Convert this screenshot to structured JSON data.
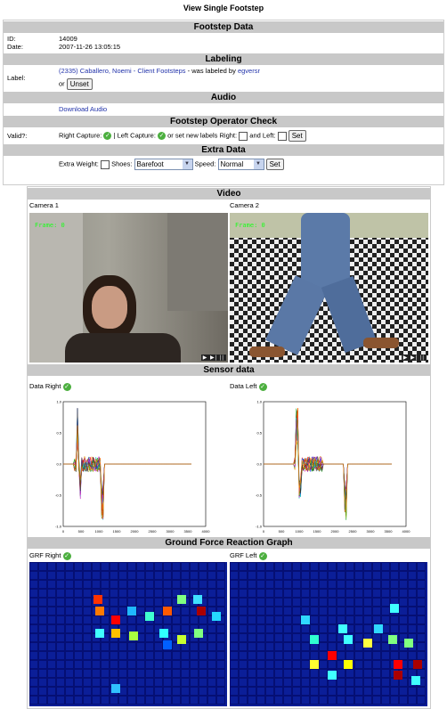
{
  "page_title": "View Single Footstep",
  "footstep_data": {
    "heading": "Footstep Data",
    "id_label": "ID:",
    "id_value": "14009",
    "date_label": "Date:",
    "date_value": "2007-11-26 13:05:15"
  },
  "labeling": {
    "heading": "Labeling",
    "label": "Label:",
    "link_text": "(2335) Caballero, Noemi - Client Footsteps",
    "text_mid": "- was labeled by",
    "labeled_by": "egversr",
    "or_text": "or",
    "unset_button": "Unset"
  },
  "audio": {
    "heading": "Audio",
    "download_link": "Download Audio"
  },
  "operator_check": {
    "heading": "Footstep Operator Check",
    "valid_label": "Valid?:",
    "right_capture": "Right Capture:",
    "left_capture": "| Left Capture:",
    "set_text": "or set new labels Right:",
    "and_left": "and Left:",
    "set_button": "Set"
  },
  "extra_data": {
    "heading": "Extra Data",
    "extra_weight": "Extra Weight:",
    "shoes_label": "Shoes:",
    "shoes_value": "Barefoot",
    "speed_label": "Speed:",
    "speed_value": "Normal",
    "set_button": "Set"
  },
  "video": {
    "heading": "Video",
    "camera1": "Camera 1",
    "camera2": "Camera 2",
    "frame_text": "Frame: 0",
    "controls": "▶ ▶| ||"
  },
  "sensor": {
    "heading": "Sensor data",
    "right_label": "Data Right",
    "left_label": "Data Left"
  },
  "grf": {
    "heading": "Ground Force Reaction Graph",
    "right_label": "GRF Right",
    "left_label": "GRF Left"
  },
  "chart_data": [
    {
      "type": "line",
      "title": "Data Right",
      "xlim": [
        0,
        4000
      ],
      "ylim": [
        -1,
        1
      ],
      "x_ticks": [
        "0",
        "500",
        "1000",
        "1500",
        "2000",
        "2500",
        "3000",
        "3500",
        "4000"
      ]
    },
    {
      "type": "line",
      "title": "Data Left",
      "xlim": [
        0,
        4000
      ],
      "ylim": [
        -1,
        1
      ],
      "x_ticks": [
        "0",
        "500",
        "1000",
        "1500",
        "2000",
        "2500",
        "3000",
        "3500",
        "4000"
      ]
    }
  ],
  "colors": {
    "header_bg": "#c8c8c8",
    "link": "#2233aa",
    "grf_bg": "#0b1e98"
  }
}
